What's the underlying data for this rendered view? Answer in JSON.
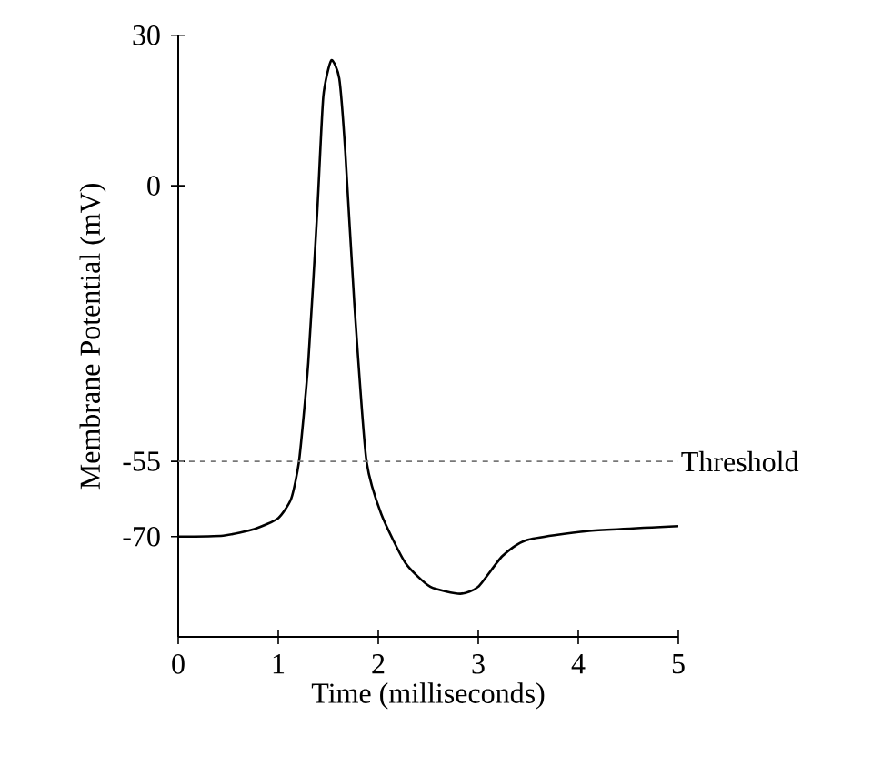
{
  "chart_data": {
    "type": "line",
    "xlabel": "Time (milliseconds)",
    "ylabel": "Membrane Potential (mV)",
    "xlim": [
      0,
      5
    ],
    "ylim": [
      -90,
      30
    ],
    "xticks": [
      0,
      1,
      2,
      3,
      4,
      5
    ],
    "yticks": [
      -70,
      -55,
      0,
      30
    ],
    "grid": false,
    "marker": "none",
    "line_style": "solid",
    "x": [
      0,
      0.45,
      0.76,
      1.0,
      1.13,
      1.21,
      1.3,
      1.39,
      1.45,
      1.53,
      1.61,
      1.67,
      1.76,
      1.88,
      2.03,
      2.27,
      2.52,
      2.82,
      3.0,
      3.24,
      3.48,
      4.09,
      5.0
    ],
    "series": [
      {
        "color": "#000000",
        "values": [
          -70,
          -69.8,
          -68.5,
          -66.3,
          -62.4,
          -54.6,
          -35.3,
          -5.2,
          17.7,
          25,
          21.4,
          6.9,
          -23.3,
          -54.6,
          -65.5,
          -75.2,
          -80,
          -81.4,
          -80,
          -73.9,
          -70.7,
          -68.9,
          -67.9
        ]
      }
    ],
    "ref_lines": [
      {
        "axis": "y",
        "value": -55,
        "label": "Threshold",
        "color": "#777777",
        "line_style": "dashed"
      }
    ]
  }
}
